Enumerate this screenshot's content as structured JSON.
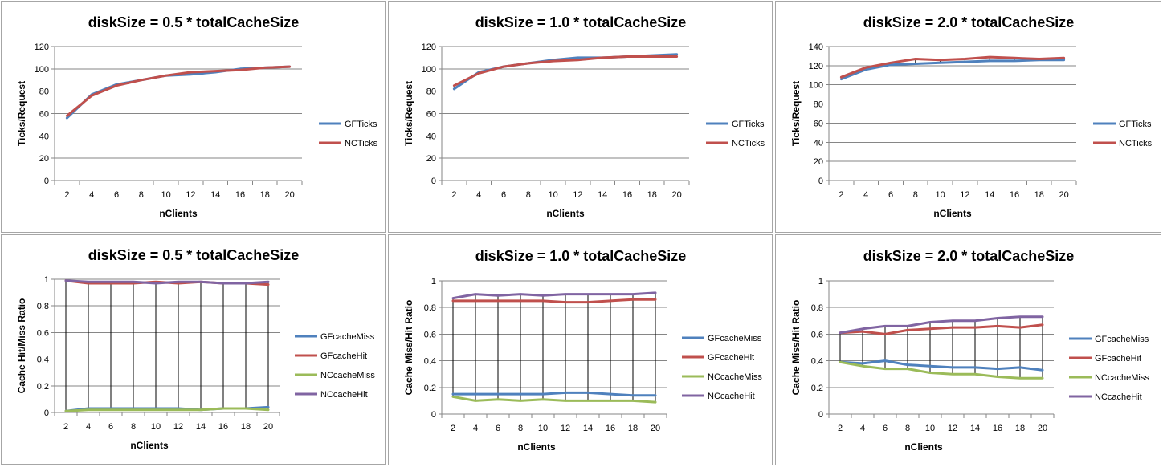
{
  "colors": {
    "GF_primary": "#4f81bd",
    "NC_primary": "#c0504d",
    "green": "#9bbb59",
    "purple": "#8064a2",
    "gridline": "#868686",
    "dropline": "#000000"
  },
  "chart_data": [
    {
      "type": "line",
      "title": "diskSize = 0.5 * totalCacheSize",
      "xlabel": "nClients",
      "ylabel": "Ticks/Request",
      "categories": [
        "2",
        "4",
        "6",
        "8",
        "10",
        "12",
        "14",
        "16",
        "18",
        "20"
      ],
      "ylim": [
        0,
        120
      ],
      "yticks": [
        "0",
        "20",
        "40",
        "60",
        "80",
        "100",
        "120"
      ],
      "grid": true,
      "legend_position": "right",
      "series": [
        {
          "name": "GFTicks",
          "color": "#4f81bd",
          "values": [
            56,
            77,
            86,
            90,
            94,
            95,
            97,
            100,
            101,
            102
          ]
        },
        {
          "name": "NCTicks",
          "color": "#c0504d",
          "values": [
            58,
            76,
            85,
            90,
            94,
            97,
            98,
            99,
            101,
            102
          ]
        }
      ]
    },
    {
      "type": "line",
      "title": "diskSize = 1.0 * totalCacheSize",
      "xlabel": "nClients",
      "ylabel": "Ticks/Request",
      "categories": [
        "2",
        "4",
        "6",
        "8",
        "10",
        "12",
        "14",
        "16",
        "18",
        "20"
      ],
      "ylim": [
        0,
        120
      ],
      "yticks": [
        "0",
        "20",
        "40",
        "60",
        "80",
        "100",
        "120"
      ],
      "grid": true,
      "legend_position": "right",
      "series": [
        {
          "name": "GFTicks",
          "color": "#4f81bd",
          "values": [
            82,
            97,
            102,
            105,
            108,
            110,
            110,
            111,
            112,
            113
          ]
        },
        {
          "name": "NCTicks",
          "color": "#c0504d",
          "values": [
            85,
            96,
            102,
            105,
            107,
            108,
            110,
            111,
            111,
            111
          ]
        }
      ]
    },
    {
      "type": "line",
      "title": "diskSize = 2.0 * totalCacheSize",
      "xlabel": "nClients",
      "ylabel": "Ticks/Request",
      "categories": [
        "2",
        "4",
        "6",
        "8",
        "10",
        "12",
        "14",
        "16",
        "18",
        "20"
      ],
      "ylim": [
        0,
        140
      ],
      "yticks": [
        "0",
        "20",
        "40",
        "60",
        "80",
        "100",
        "120",
        "140"
      ],
      "grid": true,
      "legend_position": "right",
      "series": [
        {
          "name": "GFTicks",
          "color": "#4f81bd",
          "values": [
            106,
            116,
            121,
            122,
            123,
            124,
            125,
            125,
            126,
            126
          ]
        },
        {
          "name": "NCTicks",
          "color": "#c0504d",
          "values": [
            108,
            118,
            123,
            127,
            126,
            127,
            129,
            128,
            127,
            128
          ]
        }
      ]
    },
    {
      "type": "line",
      "title": "diskSize = 0.5 * totalCacheSize",
      "xlabel": "nClients",
      "ylabel": "Cache Hit/Miss Ratio",
      "categories": [
        "2",
        "4",
        "6",
        "8",
        "10",
        "12",
        "14",
        "16",
        "18",
        "20"
      ],
      "ylim": [
        0,
        1
      ],
      "yticks": [
        "0",
        "0.2",
        "0.4",
        "0.6",
        "0.8",
        "1"
      ],
      "grid": true,
      "legend_position": "right",
      "series": [
        {
          "name": "GFcacheMiss",
          "color": "#4f81bd",
          "values": [
            0.01,
            0.03,
            0.03,
            0.03,
            0.03,
            0.03,
            0.02,
            0.03,
            0.03,
            0.04
          ]
        },
        {
          "name": "GFcacheHit",
          "color": "#c0504d",
          "values": [
            0.99,
            0.97,
            0.97,
            0.97,
            0.98,
            0.97,
            0.98,
            0.97,
            0.97,
            0.96
          ]
        },
        {
          "name": "NCcacheMiss",
          "color": "#9bbb59",
          "values": [
            0.01,
            0.02,
            0.02,
            0.02,
            0.02,
            0.02,
            0.02,
            0.03,
            0.03,
            0.02
          ]
        },
        {
          "name": "NCcacheHit",
          "color": "#8064a2",
          "values": [
            0.99,
            0.98,
            0.98,
            0.98,
            0.97,
            0.98,
            0.98,
            0.97,
            0.97,
            0.98
          ]
        }
      ]
    },
    {
      "type": "line",
      "title": "diskSize = 1.0 * totalCacheSize",
      "xlabel": "nClients",
      "ylabel": "Cache Miss/Hit Ratio",
      "categories": [
        "2",
        "4",
        "6",
        "8",
        "10",
        "12",
        "14",
        "16",
        "18",
        "20"
      ],
      "ylim": [
        0,
        1
      ],
      "yticks": [
        "0",
        "0.2",
        "0.4",
        "0.6",
        "0.8",
        "1"
      ],
      "grid": true,
      "legend_position": "right",
      "series": [
        {
          "name": "GFcacheMiss",
          "color": "#4f81bd",
          "values": [
            0.15,
            0.15,
            0.15,
            0.15,
            0.15,
            0.16,
            0.16,
            0.15,
            0.14,
            0.14
          ]
        },
        {
          "name": "GFcacheHit",
          "color": "#c0504d",
          "values": [
            0.85,
            0.85,
            0.85,
            0.85,
            0.85,
            0.84,
            0.84,
            0.85,
            0.86,
            0.86
          ]
        },
        {
          "name": "NCcacheMiss",
          "color": "#9bbb59",
          "values": [
            0.13,
            0.1,
            0.11,
            0.1,
            0.11,
            0.1,
            0.1,
            0.1,
            0.1,
            0.09
          ]
        },
        {
          "name": "NCcacheHit",
          "color": "#8064a2",
          "values": [
            0.87,
            0.9,
            0.89,
            0.9,
            0.89,
            0.9,
            0.9,
            0.9,
            0.9,
            0.91
          ]
        }
      ]
    },
    {
      "type": "line",
      "title": "diskSize = 2.0 * totalCacheSize",
      "xlabel": "nClients",
      "ylabel": "Cache Miss/Hit Ratio",
      "categories": [
        "2",
        "4",
        "6",
        "8",
        "10",
        "12",
        "14",
        "16",
        "18",
        "20"
      ],
      "ylim": [
        0,
        1
      ],
      "yticks": [
        "0",
        "0.2",
        "0.4",
        "0.6",
        "0.8",
        "1"
      ],
      "grid": true,
      "legend_position": "right",
      "series": [
        {
          "name": "GFcacheMiss",
          "color": "#4f81bd",
          "values": [
            0.39,
            0.38,
            0.4,
            0.37,
            0.36,
            0.35,
            0.35,
            0.34,
            0.35,
            0.33
          ]
        },
        {
          "name": "GFcacheHit",
          "color": "#c0504d",
          "values": [
            0.61,
            0.62,
            0.6,
            0.63,
            0.64,
            0.65,
            0.65,
            0.66,
            0.65,
            0.67
          ]
        },
        {
          "name": "NCcacheMiss",
          "color": "#9bbb59",
          "values": [
            0.39,
            0.36,
            0.34,
            0.34,
            0.31,
            0.3,
            0.3,
            0.28,
            0.27,
            0.27
          ]
        },
        {
          "name": "NCcacheHit",
          "color": "#8064a2",
          "values": [
            0.61,
            0.64,
            0.66,
            0.66,
            0.69,
            0.7,
            0.7,
            0.72,
            0.73,
            0.73
          ]
        }
      ]
    }
  ]
}
